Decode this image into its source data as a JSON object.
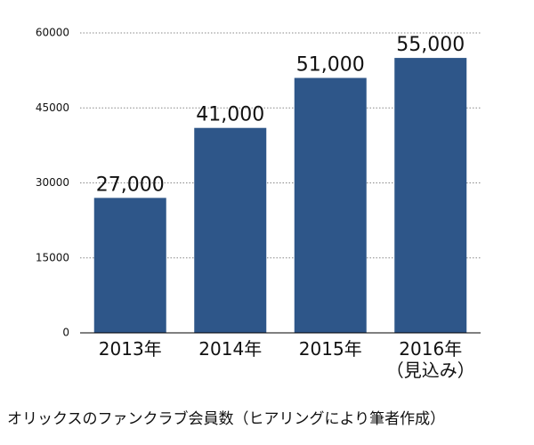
{
  "chart_data": {
    "type": "bar",
    "categories": [
      "2013年",
      "2014年",
      "2015年",
      "2016年\n（見込み）"
    ],
    "values": [
      27000,
      41000,
      51000,
      55000
    ],
    "value_labels": [
      "27,000",
      "41,000",
      "51,000",
      "55,000"
    ],
    "color": "#2e5689",
    "ylim": [
      0,
      60000
    ],
    "yticks": [
      0,
      15000,
      30000,
      45000,
      60000
    ],
    "grid": true,
    "caption": "オリックスのファンクラブ会員数（ヒアリングにより筆者作成）"
  }
}
